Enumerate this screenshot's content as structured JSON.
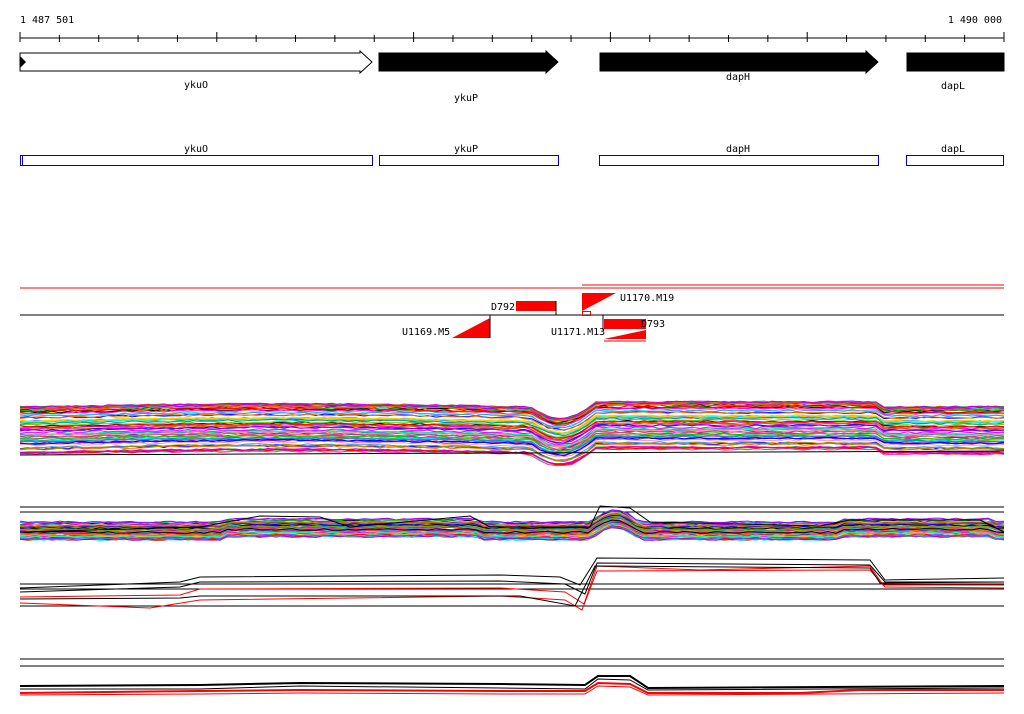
{
  "coordinates": {
    "start": "1 487 501",
    "end": "1 490 000"
  },
  "genes": [
    {
      "name": "ykuO",
      "strand": "+",
      "filled": false
    },
    {
      "name": "ykuP",
      "strand": "+",
      "filled": true
    },
    {
      "name": "dapH",
      "strand": "+",
      "filled": true
    },
    {
      "name": "dapL",
      "strand": "+",
      "filled": true
    }
  ],
  "annotation_boxes": [
    {
      "name": "ykuO"
    },
    {
      "name": "ykuP"
    },
    {
      "name": "dapH"
    },
    {
      "name": "dapL"
    }
  ],
  "features": [
    {
      "label": "D792",
      "shape": "bar"
    },
    {
      "label": "U1170.M19",
      "shape": "wedge"
    },
    {
      "label": "U1169.M5",
      "shape": "wedge"
    },
    {
      "label": "U1171.M13",
      "shape": "bar"
    },
    {
      "label": "D793",
      "shape": "wedge"
    }
  ],
  "colors": {
    "gene_fill": "#000000",
    "annotation_stroke": "#0000cc",
    "feature": "#ff0000",
    "track_line": "#000000"
  }
}
